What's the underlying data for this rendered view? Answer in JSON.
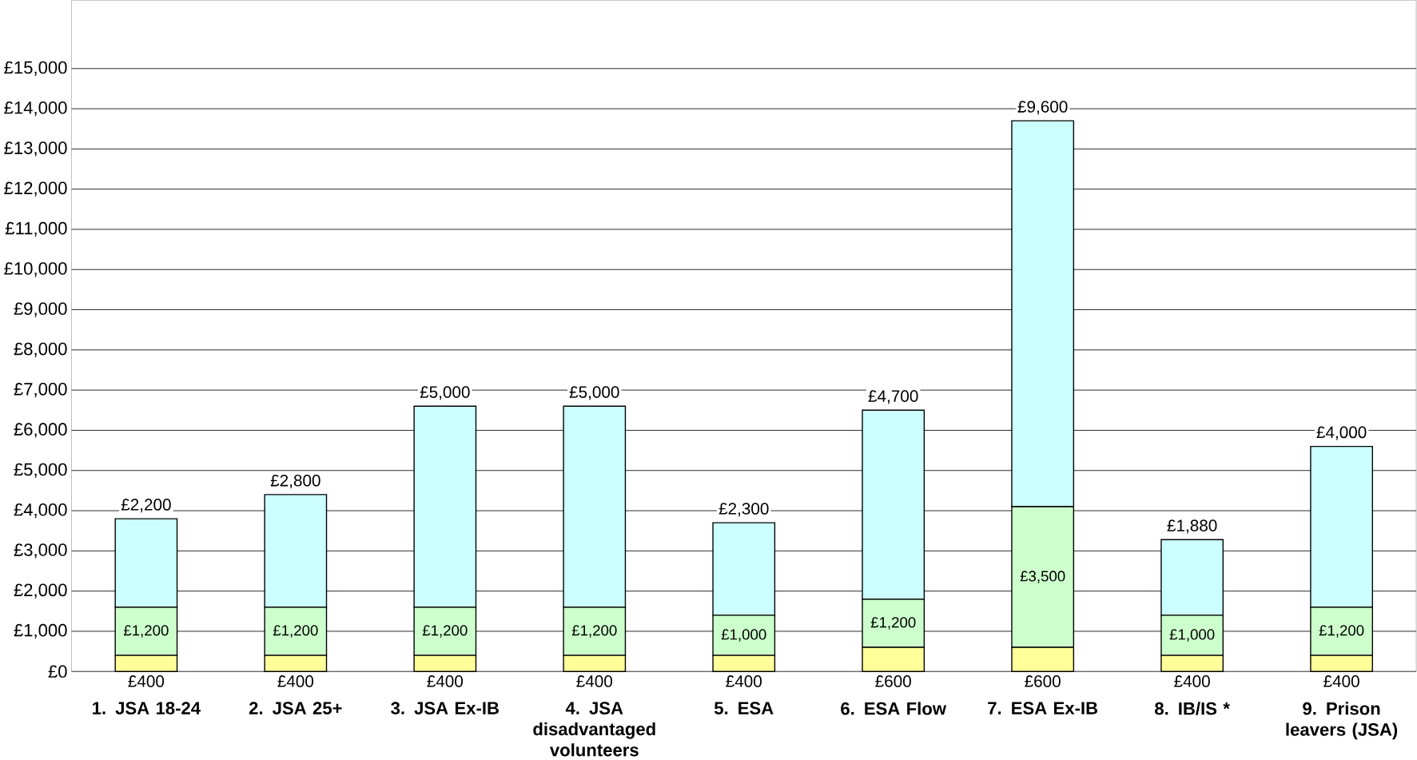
{
  "chart_data": {
    "type": "bar",
    "stacked": true,
    "categories": [
      "1. JSA 18-24",
      "2. JSA 25+",
      "3. JSA Ex-IB",
      "4. JSA disadvantaged volunteers",
      "5. ESA",
      "6. ESA Flow",
      "7. ESA Ex-IB",
      "8. IB/IS *",
      "9. Prison leavers (JSA)"
    ],
    "series": [
      {
        "color": "#ffff99",
        "values": [
          400,
          400,
          400,
          400,
          400,
          600,
          600,
          400,
          400
        ],
        "value_labels": [
          "£400",
          "£400",
          "£400",
          "£400",
          "£400",
          "£600",
          "£600",
          "£400",
          "£400"
        ]
      },
      {
        "color": "#ccffcc",
        "values": [
          1200,
          1200,
          1200,
          1200,
          1000,
          1200,
          3500,
          1000,
          1200
        ],
        "value_labels": [
          "£1,200",
          "£1,200",
          "£1,200",
          "£1,200",
          "£1,000",
          "£1,200",
          "£3,500",
          "£1,000",
          "£1,200"
        ]
      },
      {
        "color": "#ccffff",
        "values": [
          2200,
          2800,
          5000,
          5000,
          2300,
          4700,
          9600,
          1880,
          4000
        ],
        "value_labels": [
          "£2,200",
          "£2,800",
          "£5,000",
          "£5,000",
          "£2,300",
          "£4,700",
          "£9,600",
          "£1,880",
          "£4,000"
        ]
      }
    ],
    "ylim": [
      0,
      16700
    ],
    "yticks": [
      {
        "value": 0,
        "label": "£0"
      },
      {
        "value": 1000,
        "label": "£1,000"
      },
      {
        "value": 2000,
        "label": "£2,000"
      },
      {
        "value": 3000,
        "label": "£3,000"
      },
      {
        "value": 4000,
        "label": "£4,000"
      },
      {
        "value": 5000,
        "label": "£5,000"
      },
      {
        "value": 6000,
        "label": "£6,000"
      },
      {
        "value": 7000,
        "label": "£7,000"
      },
      {
        "value": 8000,
        "label": "£8,000"
      },
      {
        "value": 9000,
        "label": "£9,000"
      },
      {
        "value": 10000,
        "label": "£10,000"
      },
      {
        "value": 11000,
        "label": "£11,000"
      },
      {
        "value": 12000,
        "label": "£12,000"
      },
      {
        "value": 13000,
        "label": "£13,000"
      },
      {
        "value": 14000,
        "label": "£14,000"
      },
      {
        "value": 15000,
        "label": "£15,000"
      }
    ],
    "grid": "y"
  }
}
